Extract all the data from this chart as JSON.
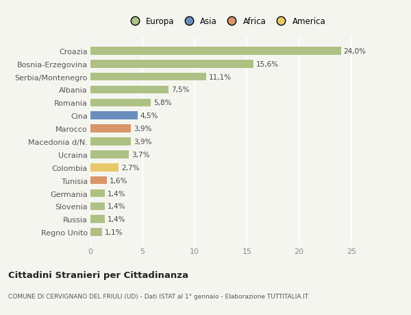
{
  "categories": [
    "Croazia",
    "Bosnia-Erzegovina",
    "Serbia/Montenegro",
    "Albania",
    "Romania",
    "Cina",
    "Marocco",
    "Macedonia d/N.",
    "Ucraina",
    "Colombia",
    "Tunisia",
    "Germania",
    "Slovenia",
    "Russia",
    "Regno Unito"
  ],
  "values": [
    24.0,
    15.6,
    11.1,
    7.5,
    5.8,
    4.5,
    3.9,
    3.9,
    3.7,
    2.7,
    1.6,
    1.4,
    1.4,
    1.4,
    1.1
  ],
  "labels": [
    "24,0%",
    "15,6%",
    "11,1%",
    "7,5%",
    "5,8%",
    "4,5%",
    "3,9%",
    "3,9%",
    "3,7%",
    "2,7%",
    "1,6%",
    "1,4%",
    "1,4%",
    "1,4%",
    "1,1%"
  ],
  "colors": [
    "#aec185",
    "#aec185",
    "#aec185",
    "#aec185",
    "#aec185",
    "#6a8fbf",
    "#d9956a",
    "#aec185",
    "#aec185",
    "#e8c96a",
    "#d9956a",
    "#aec185",
    "#aec185",
    "#aec185",
    "#aec185"
  ],
  "legend_labels": [
    "Europa",
    "Asia",
    "Africa",
    "America"
  ],
  "legend_colors": [
    "#aec185",
    "#6a8fbf",
    "#d9956a",
    "#e8c96a"
  ],
  "title": "Cittadini Stranieri per Cittadinanza",
  "subtitle": "COMUNE DI CERVIGNANO DEL FRIULI (UD) - Dati ISTAT al 1° gennaio - Elaborazione TUTTITALIA.IT",
  "xlim": [
    0,
    26
  ],
  "xticks": [
    0,
    5,
    10,
    15,
    20,
    25
  ],
  "bg_color": "#f5f5f0",
  "grid_color": "#ffffff"
}
